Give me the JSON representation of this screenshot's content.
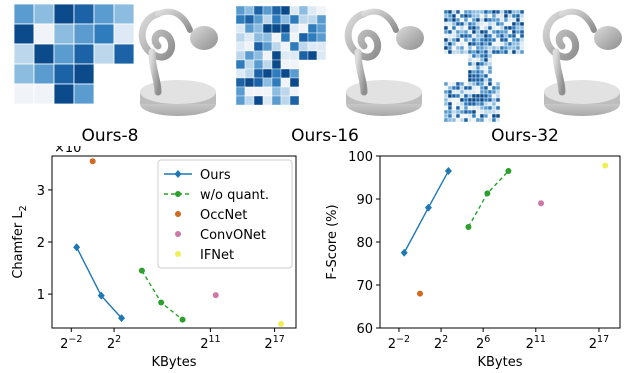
{
  "captions": [
    "Ours-8",
    "Ours-16",
    "Ours-32"
  ],
  "colors": {
    "ours": "#1f77b4",
    "wo_quant": "#2ca02c",
    "occnet": "#d2691e",
    "convonet": "#cc79a7",
    "ifnet": "#eeee55"
  },
  "chart_data": [
    {
      "type": "scatter",
      "xlabel": "KBytes",
      "ylabel": "Chamfer L2 ×10⁻⁴",
      "ylabel_main": "Chamfer ",
      "ylabel_sub": "2",
      "ylabel_scale": "×10",
      "ylabel_exp": "−4",
      "x_scale": "log2",
      "x_ticks": [
        {
          "base": "2",
          "exp": "−2",
          "log2": -2
        },
        {
          "base": "2",
          "exp": "2",
          "log2": 2
        },
        {
          "base": "2",
          "exp": "11",
          "log2": 11
        },
        {
          "base": "2",
          "exp": "17",
          "log2": 17
        }
      ],
      "xlim_log2": [
        -3.8,
        19.0
      ],
      "y_ticks": [
        "1",
        "2",
        "3"
      ],
      "ylim": [
        0.35,
        3.65
      ],
      "legend_position": "top-right",
      "series": [
        {
          "name": "Ours",
          "key": "ours",
          "marker": "diamond",
          "line": "solid",
          "points": [
            {
              "x_log2": -1.5,
              "y": 1.9
            },
            {
              "x_log2": 0.8,
              "y": 0.97
            },
            {
              "x_log2": 2.7,
              "y": 0.54
            }
          ]
        },
        {
          "name": "w/o quant.",
          "key": "wo_quant",
          "marker": "circle",
          "line": "dashed",
          "points": [
            {
              "x_log2": 4.6,
              "y": 1.45
            },
            {
              "x_log2": 6.4,
              "y": 0.84
            },
            {
              "x_log2": 8.4,
              "y": 0.51
            }
          ]
        },
        {
          "name": "OccNet",
          "key": "occnet",
          "marker": "circle",
          "line": "none",
          "points": [
            {
              "x_log2": 0.0,
              "y": 3.55
            }
          ]
        },
        {
          "name": "ConvONet",
          "key": "convonet",
          "marker": "circle",
          "line": "none",
          "points": [
            {
              "x_log2": 11.5,
              "y": 0.98
            }
          ]
        },
        {
          "name": "IFNet",
          "key": "ifnet",
          "marker": "circle",
          "line": "none",
          "points": [
            {
              "x_log2": 17.6,
              "y": 0.43
            }
          ]
        }
      ]
    },
    {
      "type": "scatter",
      "xlabel": "KBytes",
      "ylabel": "F-Score (%)",
      "x_scale": "log2",
      "x_ticks": [
        {
          "base": "2",
          "exp": "−2",
          "log2": -2
        },
        {
          "base": "2",
          "exp": "2",
          "log2": 2
        },
        {
          "base": "2",
          "exp": "6",
          "log2": 6
        },
        {
          "base": "2",
          "exp": "11",
          "log2": 11
        },
        {
          "base": "2",
          "exp": "17",
          "log2": 17
        }
      ],
      "xlim_log2": [
        -3.8,
        19.0
      ],
      "y_ticks": [
        "60",
        "70",
        "80",
        "90",
        "100"
      ],
      "ylim": [
        60,
        100
      ],
      "series": [
        {
          "name": "Ours",
          "key": "ours",
          "marker": "diamond",
          "line": "solid",
          "points": [
            {
              "x_log2": -1.5,
              "y": 77.5
            },
            {
              "x_log2": 0.8,
              "y": 88.0
            },
            {
              "x_log2": 2.7,
              "y": 96.5
            }
          ]
        },
        {
          "name": "w/o quant.",
          "key": "wo_quant",
          "marker": "circle",
          "line": "dashed",
          "points": [
            {
              "x_log2": 4.6,
              "y": 83.5
            },
            {
              "x_log2": 6.4,
              "y": 91.3
            },
            {
              "x_log2": 8.4,
              "y": 96.5
            }
          ]
        },
        {
          "name": "OccNet",
          "key": "occnet",
          "marker": "circle",
          "line": "none",
          "points": [
            {
              "x_log2": 0.0,
              "y": 68.0
            }
          ]
        },
        {
          "name": "ConvONet",
          "key": "convonet",
          "marker": "circle",
          "line": "none",
          "points": [
            {
              "x_log2": 11.5,
              "y": 89.0
            }
          ]
        },
        {
          "name": "IFNet",
          "key": "ifnet",
          "marker": "circle",
          "line": "none",
          "points": [
            {
              "x_log2": 17.6,
              "y": 97.8
            }
          ]
        }
      ]
    }
  ]
}
